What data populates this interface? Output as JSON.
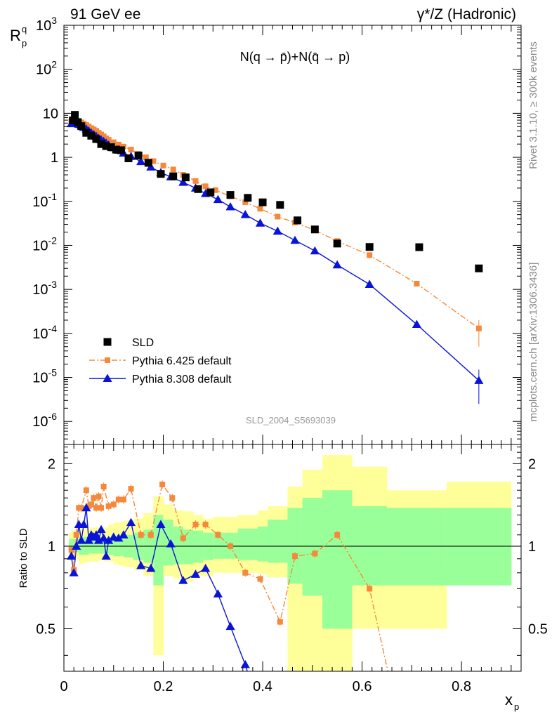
{
  "header": {
    "left": "91 GeV ee",
    "right": "γ*/Z (Hadronic)"
  },
  "side_labels": {
    "rivet": "Rivet 3.1.10, ≥ 300k events",
    "mcplots": "mcplots.cern.ch [arXiv:1306.3436]"
  },
  "analysis_id": "SLD_2004_S5693039",
  "colors": {
    "data": "#000000",
    "pythia6": "#f5883a",
    "pythia8": "#0a14d8",
    "band_outer": "#ffff99",
    "band_inner": "#99ff99"
  },
  "chart_data": [
    {
      "type": "scatter",
      "title": "N(q → p̄)+N(q̄ → p)",
      "ylabel": "R_p^q",
      "yscale": "log",
      "ylim": [
        3e-07,
        1000
      ],
      "xlim": [
        0,
        0.92
      ],
      "x_ticks": [
        0,
        0.2,
        0.4,
        0.6,
        0.8
      ],
      "y_tick_labels": [
        "10^3",
        "10^2",
        "10",
        "1",
        "10^-1",
        "10^-2",
        "10^-3",
        "10^-4",
        "10^-5",
        "10^-6"
      ],
      "legend_position": "bottom-left",
      "series": [
        {
          "name": "SLD",
          "marker": "square",
          "x": [
            0.018,
            0.022,
            0.028,
            0.035,
            0.045,
            0.055,
            0.065,
            0.075,
            0.085,
            0.095,
            0.105,
            0.115,
            0.13,
            0.15,
            0.17,
            0.195,
            0.22,
            0.245,
            0.27,
            0.295,
            0.335,
            0.37,
            0.4,
            0.435,
            0.47,
            0.505,
            0.55,
            0.615,
            0.715,
            0.835
          ],
          "y": [
            6.9,
            9.2,
            6.3,
            5.1,
            3.6,
            3.1,
            2.6,
            2.0,
            1.8,
            1.7,
            1.5,
            1.45,
            0.95,
            1.1,
            0.75,
            0.42,
            0.37,
            0.35,
            0.19,
            0.16,
            0.14,
            0.12,
            0.095,
            0.083,
            0.037,
            0.023,
            0.011,
            0.0092,
            0.0091,
            0.003
          ]
        },
        {
          "name": "Pythia 6.425 default",
          "marker": "square",
          "linestyle": "dash-dot",
          "x": [
            0.015,
            0.02,
            0.025,
            0.03,
            0.035,
            0.04,
            0.045,
            0.05,
            0.055,
            0.06,
            0.065,
            0.07,
            0.075,
            0.08,
            0.085,
            0.09,
            0.1,
            0.11,
            0.12,
            0.135,
            0.15,
            0.165,
            0.18,
            0.2,
            0.22,
            0.24,
            0.265,
            0.285,
            0.305,
            0.335,
            0.365,
            0.395,
            0.43,
            0.465,
            0.505,
            0.55,
            0.615,
            0.71,
            0.835
          ],
          "y": [
            6.6,
            7.2,
            7.0,
            6.6,
            6.2,
            5.8,
            5.4,
            5.0,
            4.6,
            4.3,
            4.0,
            3.6,
            3.3,
            3.0,
            2.7,
            2.5,
            2.2,
            1.95,
            1.75,
            1.5,
            1.2,
            1.0,
            0.82,
            0.65,
            0.53,
            0.4,
            0.29,
            0.22,
            0.18,
            0.13,
            0.096,
            0.068,
            0.045,
            0.033,
            0.022,
            0.0125,
            0.006,
            0.00135,
            0.00013
          ]
        },
        {
          "name": "Pythia 8.308 default",
          "marker": "triangle",
          "linestyle": "solid",
          "x": [
            0.015,
            0.02,
            0.025,
            0.03,
            0.035,
            0.04,
            0.045,
            0.05,
            0.055,
            0.06,
            0.065,
            0.07,
            0.075,
            0.08,
            0.085,
            0.09,
            0.1,
            0.11,
            0.12,
            0.135,
            0.155,
            0.175,
            0.195,
            0.215,
            0.24,
            0.265,
            0.285,
            0.31,
            0.335,
            0.365,
            0.395,
            0.43,
            0.465,
            0.505,
            0.55,
            0.615,
            0.71,
            0.835
          ],
          "y": [
            5.8,
            6.0,
            5.9,
            5.6,
            5.2,
            4.8,
            4.4,
            4.0,
            3.6,
            3.3,
            3.0,
            2.7,
            2.5,
            2.3,
            2.1,
            1.9,
            1.65,
            1.45,
            1.25,
            1.05,
            0.8,
            0.6,
            0.45,
            0.36,
            0.27,
            0.2,
            0.15,
            0.11,
            0.075,
            0.05,
            0.032,
            0.021,
            0.013,
            0.0075,
            0.0036,
            0.0013,
            0.00016,
            8.5e-06
          ]
        }
      ]
    },
    {
      "type": "scatter",
      "ylabel": "Ratio to SLD",
      "ylim": [
        0.35,
        2.35
      ],
      "xlim": [
        0,
        0.92
      ],
      "xlabel": "x_p",
      "y_ticks": [
        0.5,
        1,
        2
      ],
      "bands": {
        "edges": [
          0.01,
          0.015,
          0.02,
          0.025,
          0.03,
          0.04,
          0.05,
          0.06,
          0.07,
          0.08,
          0.09,
          0.1,
          0.11,
          0.12,
          0.14,
          0.16,
          0.18,
          0.2,
          0.22,
          0.24,
          0.26,
          0.28,
          0.3,
          0.32,
          0.35,
          0.39,
          0.41,
          0.45,
          0.48,
          0.52,
          0.58,
          0.65,
          0.77,
          0.9
        ],
        "outer_low": [
          0.88,
          0.89,
          0.9,
          0.9,
          0.86,
          0.87,
          0.88,
          0.88,
          0.89,
          0.88,
          0.88,
          0.86,
          0.85,
          0.84,
          0.82,
          0.78,
          0.4,
          0.78,
          0.76,
          0.74,
          0.78,
          0.78,
          0.8,
          0.8,
          0.8,
          0.79,
          0.77,
          0.35,
          0.35,
          0.35,
          0.5,
          0.5,
          0.8,
          0.72
        ],
        "outer_high": [
          1.12,
          1.14,
          1.15,
          1.15,
          1.2,
          1.18,
          1.17,
          1.17,
          1.16,
          1.17,
          1.2,
          1.22,
          1.22,
          1.24,
          1.26,
          1.32,
          1.52,
          1.42,
          1.35,
          1.34,
          1.3,
          1.26,
          1.28,
          1.28,
          1.3,
          1.35,
          1.4,
          1.65,
          1.9,
          2.15,
          1.95,
          1.6,
          1.72,
          1.7
        ],
        "inner_low": [
          0.94,
          0.94,
          0.95,
          0.95,
          0.93,
          0.93,
          0.94,
          0.94,
          0.94,
          0.94,
          0.93,
          0.92,
          0.92,
          0.91,
          0.89,
          0.87,
          0.72,
          0.85,
          0.86,
          0.86,
          0.87,
          0.89,
          0.9,
          0.9,
          0.89,
          0.88,
          0.87,
          0.73,
          0.66,
          0.5,
          0.72,
          0.72,
          0.72,
          0.72
        ],
        "inner_high": [
          1.06,
          1.06,
          1.06,
          1.06,
          1.08,
          1.08,
          1.07,
          1.07,
          1.07,
          1.07,
          1.08,
          1.09,
          1.1,
          1.1,
          1.12,
          1.15,
          1.3,
          1.25,
          1.18,
          1.15,
          1.14,
          1.12,
          1.12,
          1.12,
          1.16,
          1.18,
          1.25,
          1.38,
          1.5,
          1.6,
          1.4,
          1.38,
          1.38,
          1.38
        ]
      },
      "series": [
        {
          "name": "Pythia 6.425 default",
          "x": [
            0.015,
            0.02,
            0.025,
            0.03,
            0.035,
            0.045,
            0.05,
            0.055,
            0.06,
            0.065,
            0.07,
            0.075,
            0.08,
            0.09,
            0.1,
            0.11,
            0.12,
            0.135,
            0.155,
            0.175,
            0.198,
            0.218,
            0.24,
            0.265,
            0.285,
            0.31,
            0.335,
            0.365,
            0.395,
            0.435,
            0.465,
            0.505,
            0.55,
            0.615,
            0.66
          ],
          "y": [
            0.97,
            0.82,
            1.1,
            1.38,
            1.38,
            1.6,
            1.4,
            1.42,
            1.5,
            1.38,
            1.52,
            1.38,
            1.65,
            1.4,
            1.42,
            1.48,
            1.48,
            1.62,
            1.1,
            1.1,
            1.68,
            1.5,
            1.07,
            1.2,
            1.2,
            1.1,
            1.0,
            0.8,
            0.76,
            0.53,
            0.92,
            0.94,
            1.1,
            0.7,
            0.3
          ]
        },
        {
          "name": "Pythia 8.308 default",
          "x": [
            0.015,
            0.02,
            0.025,
            0.03,
            0.035,
            0.04,
            0.045,
            0.05,
            0.055,
            0.06,
            0.065,
            0.07,
            0.075,
            0.08,
            0.085,
            0.09,
            0.1,
            0.11,
            0.12,
            0.135,
            0.155,
            0.175,
            0.195,
            0.215,
            0.24,
            0.265,
            0.285,
            0.31,
            0.335,
            0.365,
            0.38
          ],
          "y": [
            0.92,
            0.8,
            1.0,
            1.2,
            1.05,
            1.2,
            1.38,
            1.05,
            1.1,
            1.08,
            1.1,
            1.05,
            1.15,
            1.07,
            0.92,
            1.05,
            1.08,
            1.07,
            1.1,
            1.22,
            0.85,
            0.83,
            1.2,
            1.02,
            0.75,
            0.79,
            0.83,
            0.67,
            0.51,
            0.37,
            0.3
          ]
        }
      ]
    }
  ]
}
